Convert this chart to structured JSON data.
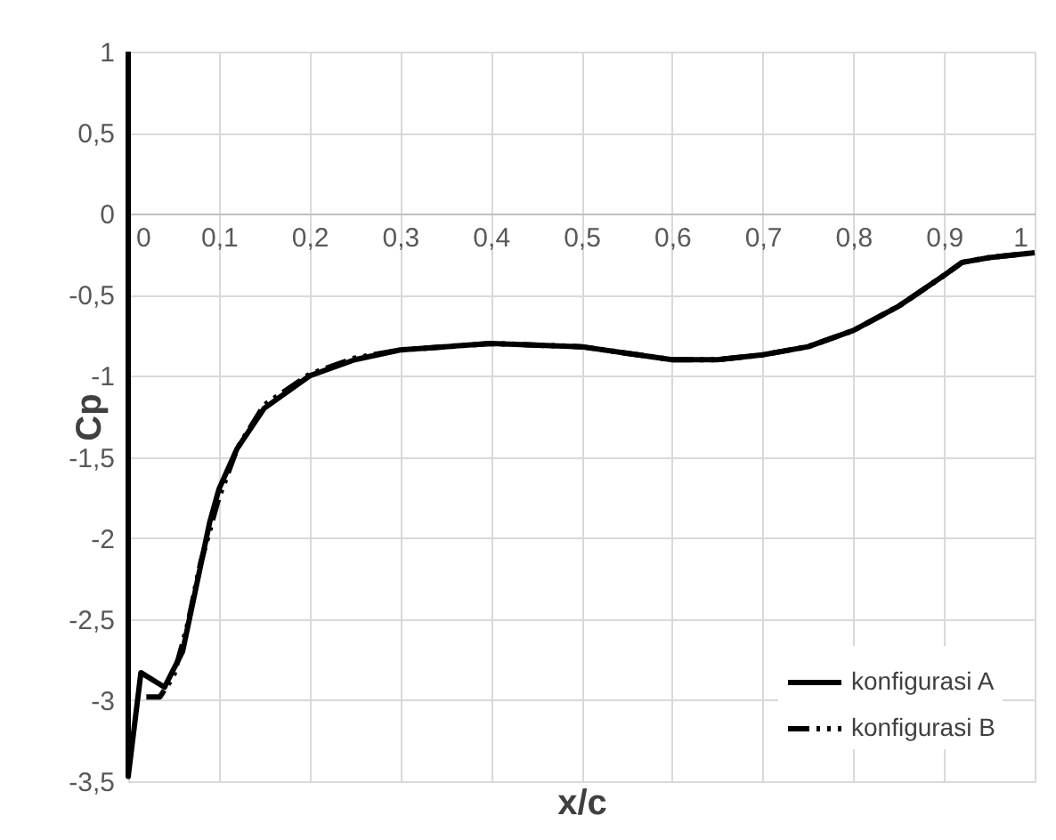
{
  "chart_data": {
    "type": "line",
    "xlabel": "x/c",
    "ylabel": "Cp",
    "xlim": [
      0,
      1
    ],
    "ylim": [
      -3.5,
      1
    ],
    "xticks": [
      0,
      {
        "value": 0.1,
        "label": "0,1"
      },
      {
        "value": 0.2,
        "label": "0,2"
      },
      {
        "value": 0.3,
        "label": "0,3"
      },
      {
        "value": 0.4,
        "label": "0,4"
      },
      {
        "value": 0.5,
        "label": "0,5"
      },
      {
        "value": 0.6,
        "label": "0,6"
      },
      {
        "value": 0.7,
        "label": "0,7"
      },
      {
        "value": 0.8,
        "label": "0,8"
      },
      {
        "value": 0.9,
        "label": "0,9"
      },
      1
    ],
    "yticks": [
      {
        "value": -3.5,
        "label": "-3,5"
      },
      -3,
      {
        "value": -2.5,
        "label": "-2,5"
      },
      -2,
      {
        "value": -1.5,
        "label": "-1,5"
      },
      -1,
      {
        "value": -0.5,
        "label": "-0,5"
      },
      0,
      {
        "value": 0.5,
        "label": "0,5"
      },
      1
    ],
    "grid": true,
    "legend": "bottom right",
    "marker": "none",
    "series": [
      {
        "name": "konfigurasi A",
        "color": "#000000",
        "line_style": "solid",
        "x": [
          0,
          0,
          0.014,
          0.04,
          0.06,
          0.075,
          0.09,
          0.1,
          0.12,
          0.15,
          0.2,
          0.25,
          0.3,
          0.4,
          0.5,
          0.55,
          0.6,
          0.65,
          0.7,
          0.75,
          0.8,
          0.85,
          0.9,
          0.92,
          0.95,
          1
        ],
        "values": [
          1,
          -3.47,
          -2.83,
          -2.92,
          -2.7,
          -2.3,
          -1.9,
          -1.7,
          -1.45,
          -1.2,
          -1.0,
          -0.9,
          -0.84,
          -0.8,
          -0.82,
          -0.86,
          -0.9,
          -0.9,
          -0.87,
          -0.82,
          -0.72,
          -0.57,
          -0.38,
          -0.3,
          -0.27,
          -0.24
        ]
      },
      {
        "name": "konfigurasi B",
        "color": "#000000",
        "line_style": "dashed",
        "x": [
          0.02,
          0.035,
          0.05,
          0.065,
          0.08,
          0.1,
          0.12,
          0.15,
          0.2,
          0.25,
          0.3,
          0.4,
          0.5,
          0.55,
          0.6,
          0.65,
          0.7,
          0.75,
          0.8,
          0.85,
          0.9,
          0.92,
          0.95,
          1
        ],
        "values": [
          -2.98,
          -2.98,
          -2.85,
          -2.55,
          -2.15,
          -1.75,
          -1.45,
          -1.18,
          -0.99,
          -0.89,
          -0.84,
          -0.8,
          -0.82,
          -0.86,
          -0.9,
          -0.9,
          -0.87,
          -0.82,
          -0.72,
          -0.57,
          -0.38,
          -0.3,
          -0.27,
          -0.24
        ]
      }
    ]
  }
}
